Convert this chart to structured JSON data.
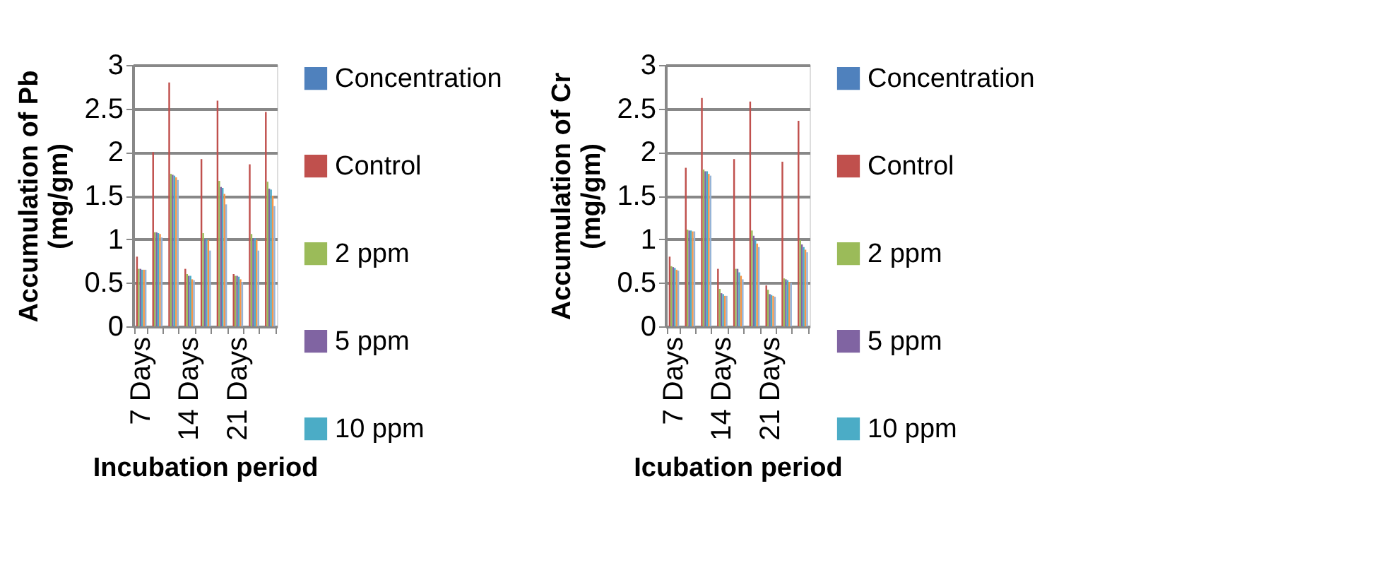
{
  "chart_data": [
    {
      "type": "bar",
      "ylabel": "Accumulation of Pb (mg/gm)",
      "xlabel": "Incubation period",
      "categories": [
        "7 Days",
        null,
        null,
        "14 Days",
        null,
        null,
        "21 Days",
        null,
        null
      ],
      "ylim": [
        0,
        3
      ],
      "yticks": [
        0,
        0.5,
        1,
        1.5,
        2,
        2.5,
        3
      ],
      "grid": "y",
      "legend": "right",
      "series": [
        {
          "name": "Concentration",
          "color": "#4f81bd",
          "values": [
            null,
            null,
            null,
            null,
            null,
            null,
            null,
            null,
            null
          ]
        },
        {
          "name": "Control",
          "color": "#c0504d",
          "values": [
            0.8,
            2.0,
            2.8,
            0.66,
            1.92,
            2.59,
            0.6,
            1.86,
            2.46
          ]
        },
        {
          "name": "2 ppm",
          "color": "#9bbb59",
          "values": [
            0.66,
            1.08,
            1.75,
            0.6,
            1.07,
            1.67,
            0.58,
            1.06,
            1.66
          ]
        },
        {
          "name": "5 ppm",
          "color": "#8064a2",
          "values": [
            0.66,
            1.08,
            1.74,
            0.58,
            1.0,
            1.6,
            0.58,
            1.01,
            1.58
          ]
        },
        {
          "name": "10 ppm",
          "color": "#4bacc6",
          "values": [
            0.65,
            1.07,
            1.73,
            0.58,
            1.0,
            1.59,
            0.57,
            1.01,
            1.57
          ]
        },
        {
          "color": "#f79646",
          "values": [
            0.65,
            1.06,
            1.71,
            0.54,
            0.99,
            1.52,
            0.54,
            0.99,
            1.5
          ]
        },
        {
          "color": "#95b3d7",
          "values": [
            0.65,
            1.02,
            1.68,
            0.53,
            0.87,
            1.4,
            0.51,
            0.87,
            1.38
          ]
        }
      ]
    },
    {
      "type": "bar",
      "ylabel": "Accumulation of Cr (mg/gm)",
      "xlabel": "Icubation period",
      "categories": [
        "7 Days",
        null,
        null,
        "14 Days",
        null,
        null,
        "21 Days",
        null,
        null
      ],
      "ylim": [
        0,
        3
      ],
      "yticks": [
        0,
        0.5,
        1,
        1.5,
        2,
        2.5,
        3
      ],
      "grid": "y",
      "legend": "right",
      "series": [
        {
          "name": "Concentration",
          "color": "#4f81bd",
          "values": [
            null,
            null,
            null,
            null,
            null,
            null,
            null,
            null,
            null
          ]
        },
        {
          "name": "Control",
          "color": "#c0504d",
          "values": [
            0.8,
            1.82,
            2.62,
            0.66,
            1.92,
            2.58,
            0.47,
            1.89,
            2.36
          ]
        },
        {
          "name": "2 ppm",
          "color": "#9bbb59",
          "values": [
            0.69,
            1.11,
            1.8,
            0.43,
            0.66,
            1.1,
            0.42,
            0.55,
            0.99
          ]
        },
        {
          "name": "5 ppm",
          "color": "#8064a2",
          "values": [
            0.68,
            1.1,
            1.78,
            0.38,
            0.66,
            1.04,
            0.37,
            0.54,
            0.94
          ]
        },
        {
          "name": "10 ppm",
          "color": "#4bacc6",
          "values": [
            0.67,
            1.1,
            1.78,
            0.37,
            0.62,
            0.99,
            0.36,
            0.53,
            0.91
          ]
        },
        {
          "color": "#f79646",
          "values": [
            0.65,
            1.09,
            1.75,
            0.35,
            0.58,
            0.95,
            0.35,
            0.51,
            0.88
          ]
        },
        {
          "color": "#95b3d7",
          "values": [
            0.64,
            1.09,
            1.73,
            0.35,
            0.54,
            0.91,
            0.34,
            0.5,
            0.85
          ]
        }
      ]
    }
  ]
}
